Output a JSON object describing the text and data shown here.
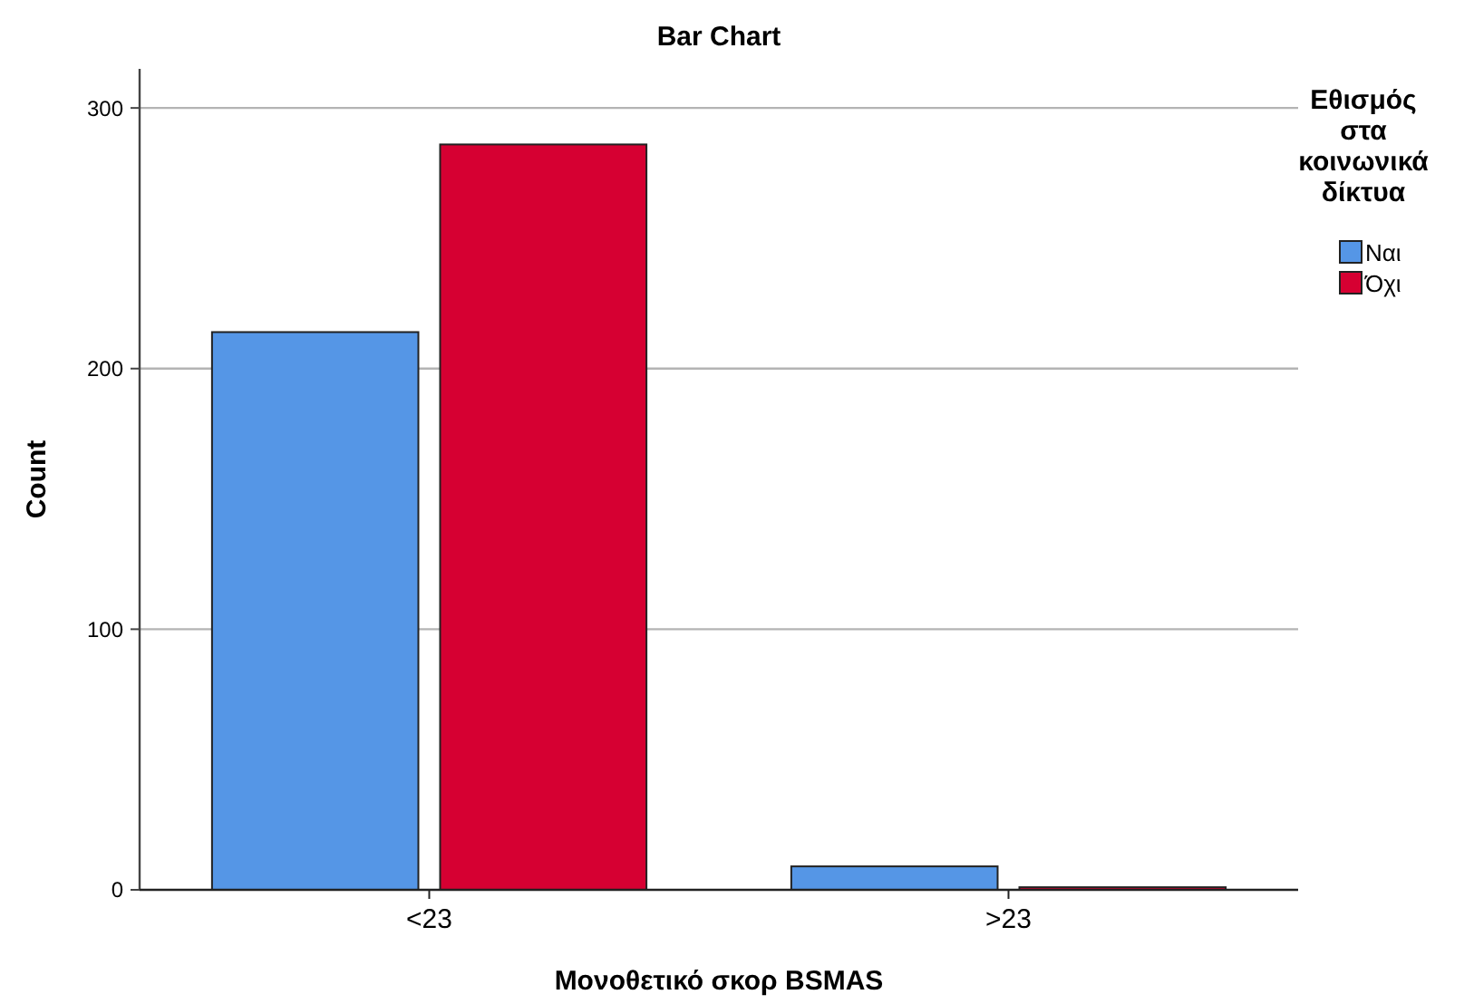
{
  "chart_data": {
    "type": "bar",
    "title": "Bar Chart",
    "xlabel": "Μονοθετικό σκορ BSMAS",
    "ylabel": "Count",
    "legend_title": "Εθισμός στα κοινωνικά δίκτυα",
    "categories": [
      "<23",
      ">23"
    ],
    "series": [
      {
        "name": "Ναι",
        "color": "#5596e6",
        "values": [
          214,
          9
        ]
      },
      {
        "name": "Όχι",
        "color": "#d60032",
        "values": [
          286,
          1
        ]
      }
    ],
    "ylim": [
      0,
      315
    ],
    "yticks": [
      0,
      100,
      200,
      300
    ],
    "grid": "y",
    "legend": "right"
  }
}
